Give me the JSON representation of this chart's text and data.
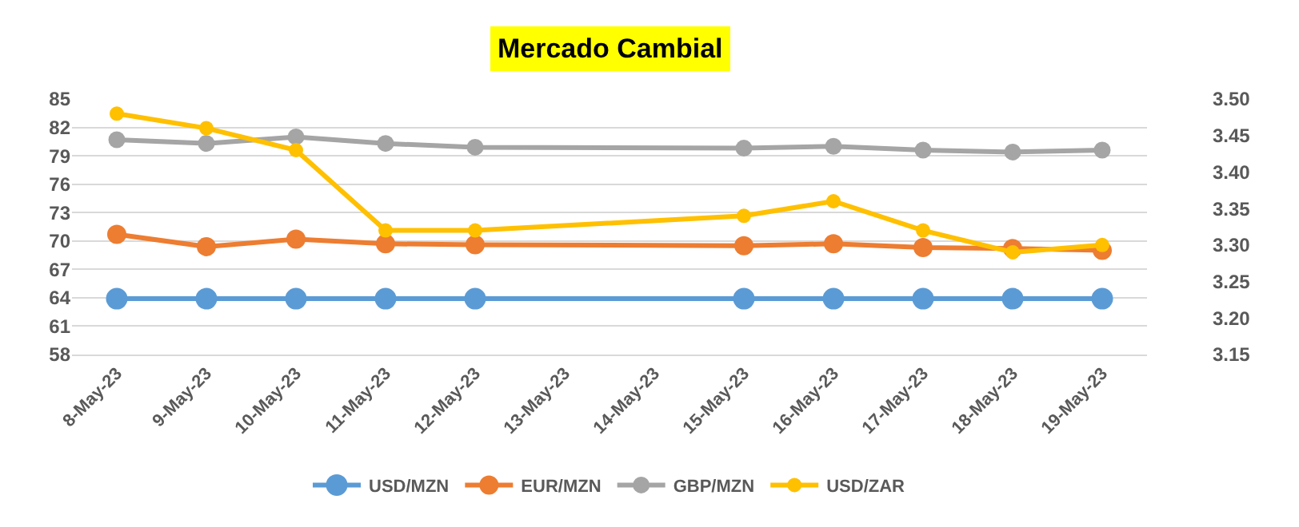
{
  "chart_data": {
    "type": "line",
    "title": "Mercado Cambial",
    "x": [
      "--05-08",
      "--05-09",
      "--05-10",
      "--05-11",
      "--05-12",
      "--05-15",
      "--05-16",
      "--05-17",
      "--05-18",
      "--05-19"
    ],
    "series": [
      {
        "name": "USD/MZN",
        "color": "#5b9bd5",
        "values": [
          63.9,
          63.9,
          63.9,
          63.9,
          63.9,
          63.9,
          63.9,
          63.9,
          63.9,
          63.9
        ]
      },
      {
        "name": "EUR/MZN",
        "color": "#ed7d31",
        "values": [
          70.7,
          69.4,
          70.2,
          69.7,
          69.6,
          69.5,
          69.7,
          69.3,
          69.2,
          69.0
        ]
      },
      {
        "name": "GBP/MZN",
        "color": "#a5a5a5",
        "values": [
          80.7,
          80.3,
          81.0,
          80.3,
          79.9,
          79.8,
          80.0,
          79.6,
          79.4,
          79.6
        ]
      },
      {
        "name": "USD/ZAR",
        "color": "#ffc000",
        "axis": "y2",
        "values": [
          3.48,
          3.46,
          3.43,
          3.32,
          3.32,
          3.34,
          3.36,
          3.32,
          3.29,
          3.3
        ]
      }
    ],
    "xlim": [
      "--05-07T12:00",
      "--05-19T12:00"
    ],
    "xticks": [
      {
        "value": "--05-08",
        "label": "8-May-23"
      },
      {
        "value": "--05-09",
        "label": "9-May-23"
      },
      {
        "value": "--05-10",
        "label": "10-May-23"
      },
      {
        "value": "--05-11",
        "label": "11-May-23"
      },
      {
        "value": "--05-12",
        "label": "12-May-23"
      },
      {
        "value": "--05-13",
        "label": "13-May-23"
      },
      {
        "value": "--05-14",
        "label": "14-May-23"
      },
      {
        "value": "--05-15",
        "label": "15-May-23"
      },
      {
        "value": "--05-16",
        "label": "16-May-23"
      },
      {
        "value": "--05-17",
        "label": "17-May-23"
      },
      {
        "value": "--05-18",
        "label": "18-May-23"
      },
      {
        "value": "--05-19",
        "label": "19-May-23"
      }
    ],
    "ylim": [
      58,
      85
    ],
    "yticks": [
      58,
      61,
      64,
      67,
      70,
      73,
      76,
      79,
      82,
      85
    ],
    "y2lim": [
      3.15,
      3.5
    ],
    "y2ticks": [
      {
        "value": 3.15,
        "label": "3.15"
      },
      {
        "value": 3.2,
        "label": "3.20"
      },
      {
        "value": 3.25,
        "label": "3.25"
      },
      {
        "value": 3.3,
        "label": "3.30"
      },
      {
        "value": 3.35,
        "label": "3.35"
      },
      {
        "value": 3.4,
        "label": "3.40"
      },
      {
        "value": 3.45,
        "label": "3.45"
      },
      {
        "value": 3.5,
        "label": "3.50"
      }
    ],
    "grid": "y",
    "legend": "bottom",
    "marker": "circle",
    "line_style": "solid"
  }
}
